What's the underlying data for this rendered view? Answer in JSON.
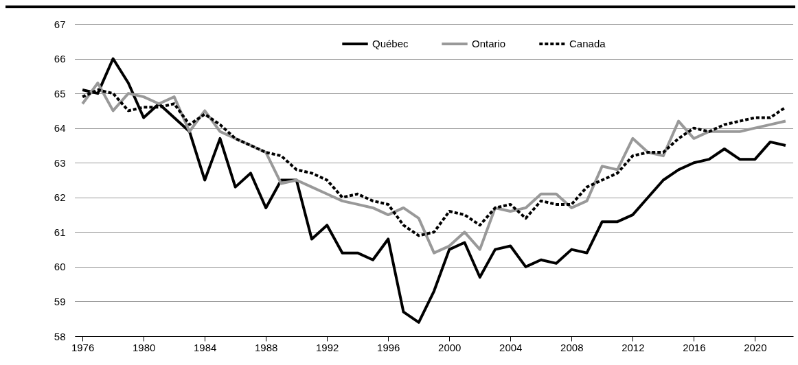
{
  "chart_data": {
    "type": "line",
    "x": [
      1976,
      1977,
      1978,
      1979,
      1980,
      1981,
      1982,
      1983,
      1984,
      1985,
      1986,
      1987,
      1988,
      1989,
      1990,
      1991,
      1992,
      1993,
      1994,
      1995,
      1996,
      1997,
      1998,
      1999,
      2000,
      2001,
      2002,
      2003,
      2004,
      2005,
      2006,
      2007,
      2008,
      2009,
      2010,
      2011,
      2012,
      2013,
      2014,
      2015,
      2016,
      2017,
      2018,
      2019,
      2020,
      2021,
      2022
    ],
    "series": [
      {
        "name": "Québec",
        "color": "#000000",
        "line_style": "solid",
        "values": [
          65.1,
          65.0,
          66.0,
          65.3,
          64.3,
          64.7,
          64.3,
          63.9,
          62.5,
          63.7,
          62.3,
          62.7,
          61.7,
          62.5,
          62.5,
          60.8,
          61.2,
          60.4,
          60.4,
          60.2,
          60.8,
          58.7,
          58.4,
          59.3,
          60.5,
          60.7,
          59.7,
          60.5,
          60.6,
          60.0,
          60.2,
          60.1,
          60.5,
          60.4,
          61.3,
          61.3,
          61.5,
          62.0,
          62.5,
          62.8,
          63.0,
          63.1,
          63.4,
          63.1,
          63.1,
          63.6,
          63.5
        ]
      },
      {
        "name": "Ontario",
        "color": "#999999",
        "line_style": "solid",
        "values": [
          64.7,
          65.3,
          64.5,
          65.0,
          64.9,
          64.7,
          64.9,
          63.9,
          64.5,
          63.9,
          63.7,
          63.5,
          63.3,
          62.4,
          62.5,
          62.3,
          62.1,
          61.9,
          61.8,
          61.7,
          61.5,
          61.7,
          61.4,
          60.4,
          60.6,
          61.0,
          60.5,
          61.7,
          61.6,
          61.7,
          62.1,
          62.1,
          61.7,
          61.9,
          62.9,
          62.8,
          63.7,
          63.3,
          63.2,
          64.2,
          63.7,
          63.9,
          63.9,
          63.9,
          64.0,
          64.1,
          64.2
        ]
      },
      {
        "name": "Canada",
        "color": "#000000",
        "line_style": "dashed",
        "values": [
          64.9,
          65.1,
          65.0,
          64.5,
          64.6,
          64.6,
          64.7,
          64.1,
          64.4,
          64.1,
          63.7,
          63.5,
          63.3,
          63.2,
          62.8,
          62.7,
          62.5,
          62.0,
          62.1,
          61.9,
          61.8,
          61.2,
          60.9,
          61.0,
          61.6,
          61.5,
          61.2,
          61.7,
          61.8,
          61.4,
          61.9,
          61.8,
          61.8,
          62.3,
          62.5,
          62.7,
          63.2,
          63.3,
          63.3,
          63.7,
          64.0,
          63.9,
          64.1,
          64.2,
          64.3,
          64.3,
          64.6
        ]
      }
    ],
    "xlim": [
      1975.5,
      2022.5
    ],
    "xticks": [
      1976,
      1980,
      1984,
      1988,
      1992,
      1996,
      2000,
      2004,
      2008,
      2012,
      2016,
      2020
    ],
    "ylim": [
      58,
      67
    ],
    "yticks": [
      58,
      59,
      60,
      61,
      62,
      63,
      64,
      65,
      66,
      67
    ],
    "grid": "y",
    "legend": "top"
  }
}
